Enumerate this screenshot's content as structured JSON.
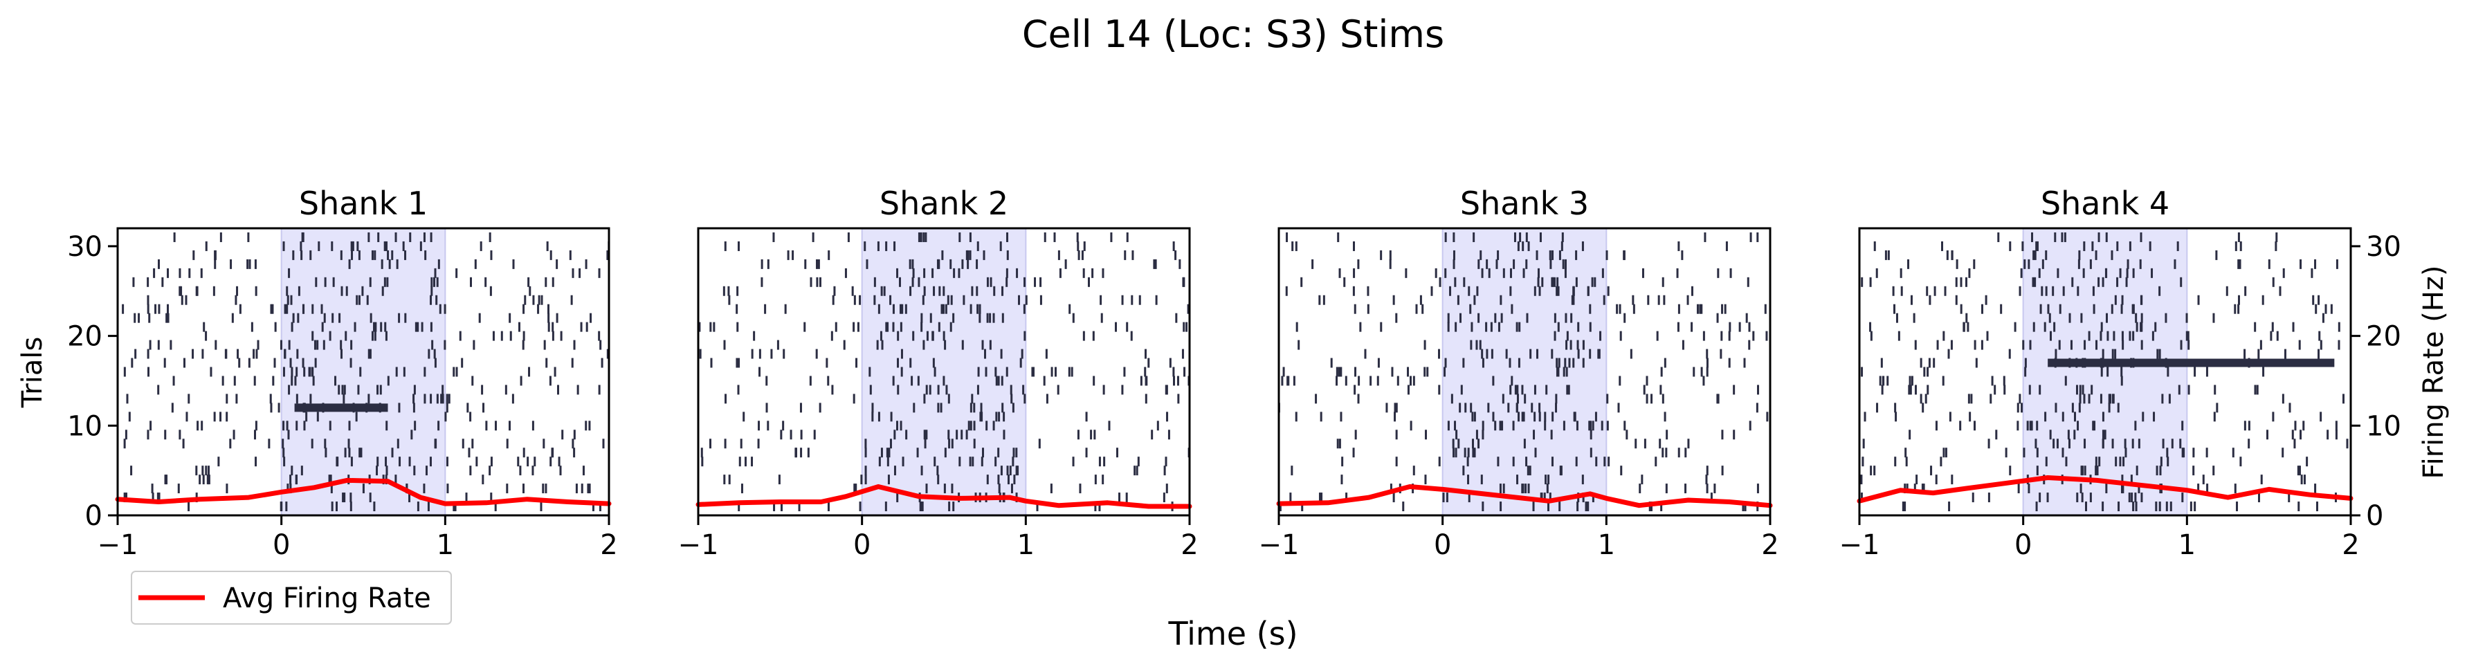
{
  "figure": {
    "title": "Cell 14 (Loc: S3) Stims",
    "xlabel": "Time (s)",
    "left_ylabel": "Trials",
    "right_ylabel": "Firing Rate (Hz)",
    "legend": {
      "label": "Avg Firing Rate",
      "color": "#ff0000",
      "position": "bottom-left"
    }
  },
  "colors": {
    "spike": "#2b2d42",
    "stim_shade": "#e4e4fb",
    "stim_edge": "#c8c8ef",
    "rate_line": "#ff0000"
  },
  "chart_data": [
    {
      "type": "raster",
      "title": "Shank 1",
      "xlim": [
        -1,
        2
      ],
      "xticks": [
        -1,
        0,
        1,
        2
      ],
      "ylim": [
        0,
        32
      ],
      "yticks": [
        0,
        10,
        20,
        30
      ],
      "stim_window": [
        0,
        1
      ],
      "trials": 31,
      "tick_show_left": true,
      "tick_show_right": false,
      "dense_trials": [
        {
          "trial": 12,
          "from": 0.08,
          "to": 0.65
        }
      ],
      "avg_rate": {
        "x": [
          -1.0,
          -0.75,
          -0.5,
          -0.2,
          0.0,
          0.2,
          0.4,
          0.65,
          0.85,
          1.0,
          1.25,
          1.5,
          1.75,
          2.0
        ],
        "y": [
          1.8,
          1.5,
          1.8,
          2.0,
          2.6,
          3.1,
          3.9,
          3.8,
          2.0,
          1.3,
          1.4,
          1.8,
          1.5,
          1.3
        ]
      }
    },
    {
      "type": "raster",
      "title": "Shank 2",
      "xlim": [
        -1,
        2
      ],
      "xticks": [
        -1,
        0,
        1,
        2
      ],
      "ylim": [
        0,
        32
      ],
      "yticks": [
        0,
        10,
        20,
        30
      ],
      "stim_window": [
        0,
        1
      ],
      "trials": 31,
      "tick_show_left": false,
      "tick_show_right": false,
      "dense_trials": [],
      "avg_rate": {
        "x": [
          -1.0,
          -0.75,
          -0.5,
          -0.25,
          -0.1,
          0.1,
          0.35,
          0.6,
          0.9,
          1.0,
          1.2,
          1.5,
          1.75,
          2.0
        ],
        "y": [
          1.2,
          1.4,
          1.5,
          1.5,
          2.1,
          3.2,
          2.1,
          1.9,
          2.0,
          1.6,
          1.1,
          1.4,
          1.0,
          1.0
        ]
      }
    },
    {
      "type": "raster",
      "title": "Shank 3",
      "xlim": [
        -1,
        2
      ],
      "xticks": [
        -1,
        0,
        1,
        2
      ],
      "ylim": [
        0,
        32
      ],
      "yticks": [
        0,
        10,
        20,
        30
      ],
      "stim_window": [
        0,
        1
      ],
      "trials": 31,
      "tick_show_left": false,
      "tick_show_right": false,
      "dense_trials": [],
      "avg_rate": {
        "x": [
          -1.0,
          -0.7,
          -0.45,
          -0.2,
          0.0,
          0.25,
          0.45,
          0.65,
          0.9,
          1.0,
          1.2,
          1.5,
          1.75,
          2.0
        ],
        "y": [
          1.3,
          1.4,
          2.0,
          3.2,
          2.9,
          2.4,
          2.0,
          1.6,
          2.4,
          1.9,
          1.1,
          1.7,
          1.5,
          1.1
        ]
      }
    },
    {
      "type": "raster",
      "title": "Shank 4",
      "xlim": [
        -1,
        2
      ],
      "xticks": [
        -1,
        0,
        1,
        2
      ],
      "ylim": [
        0,
        32
      ],
      "yticks": [
        0,
        10,
        20,
        30
      ],
      "stim_window": [
        0,
        1
      ],
      "trials": 31,
      "tick_show_left": false,
      "tick_show_right": true,
      "dense_trials": [
        {
          "trial": 17,
          "from": 0.15,
          "to": 1.9
        }
      ],
      "avg_rate": {
        "x": [
          -1.0,
          -0.75,
          -0.55,
          -0.35,
          -0.1,
          0.15,
          0.45,
          0.75,
          1.0,
          1.25,
          1.5,
          1.75,
          2.0
        ],
        "y": [
          1.6,
          2.8,
          2.5,
          3.0,
          3.6,
          4.2,
          3.9,
          3.3,
          2.8,
          2.0,
          2.9,
          2.3,
          1.9
        ]
      }
    }
  ]
}
